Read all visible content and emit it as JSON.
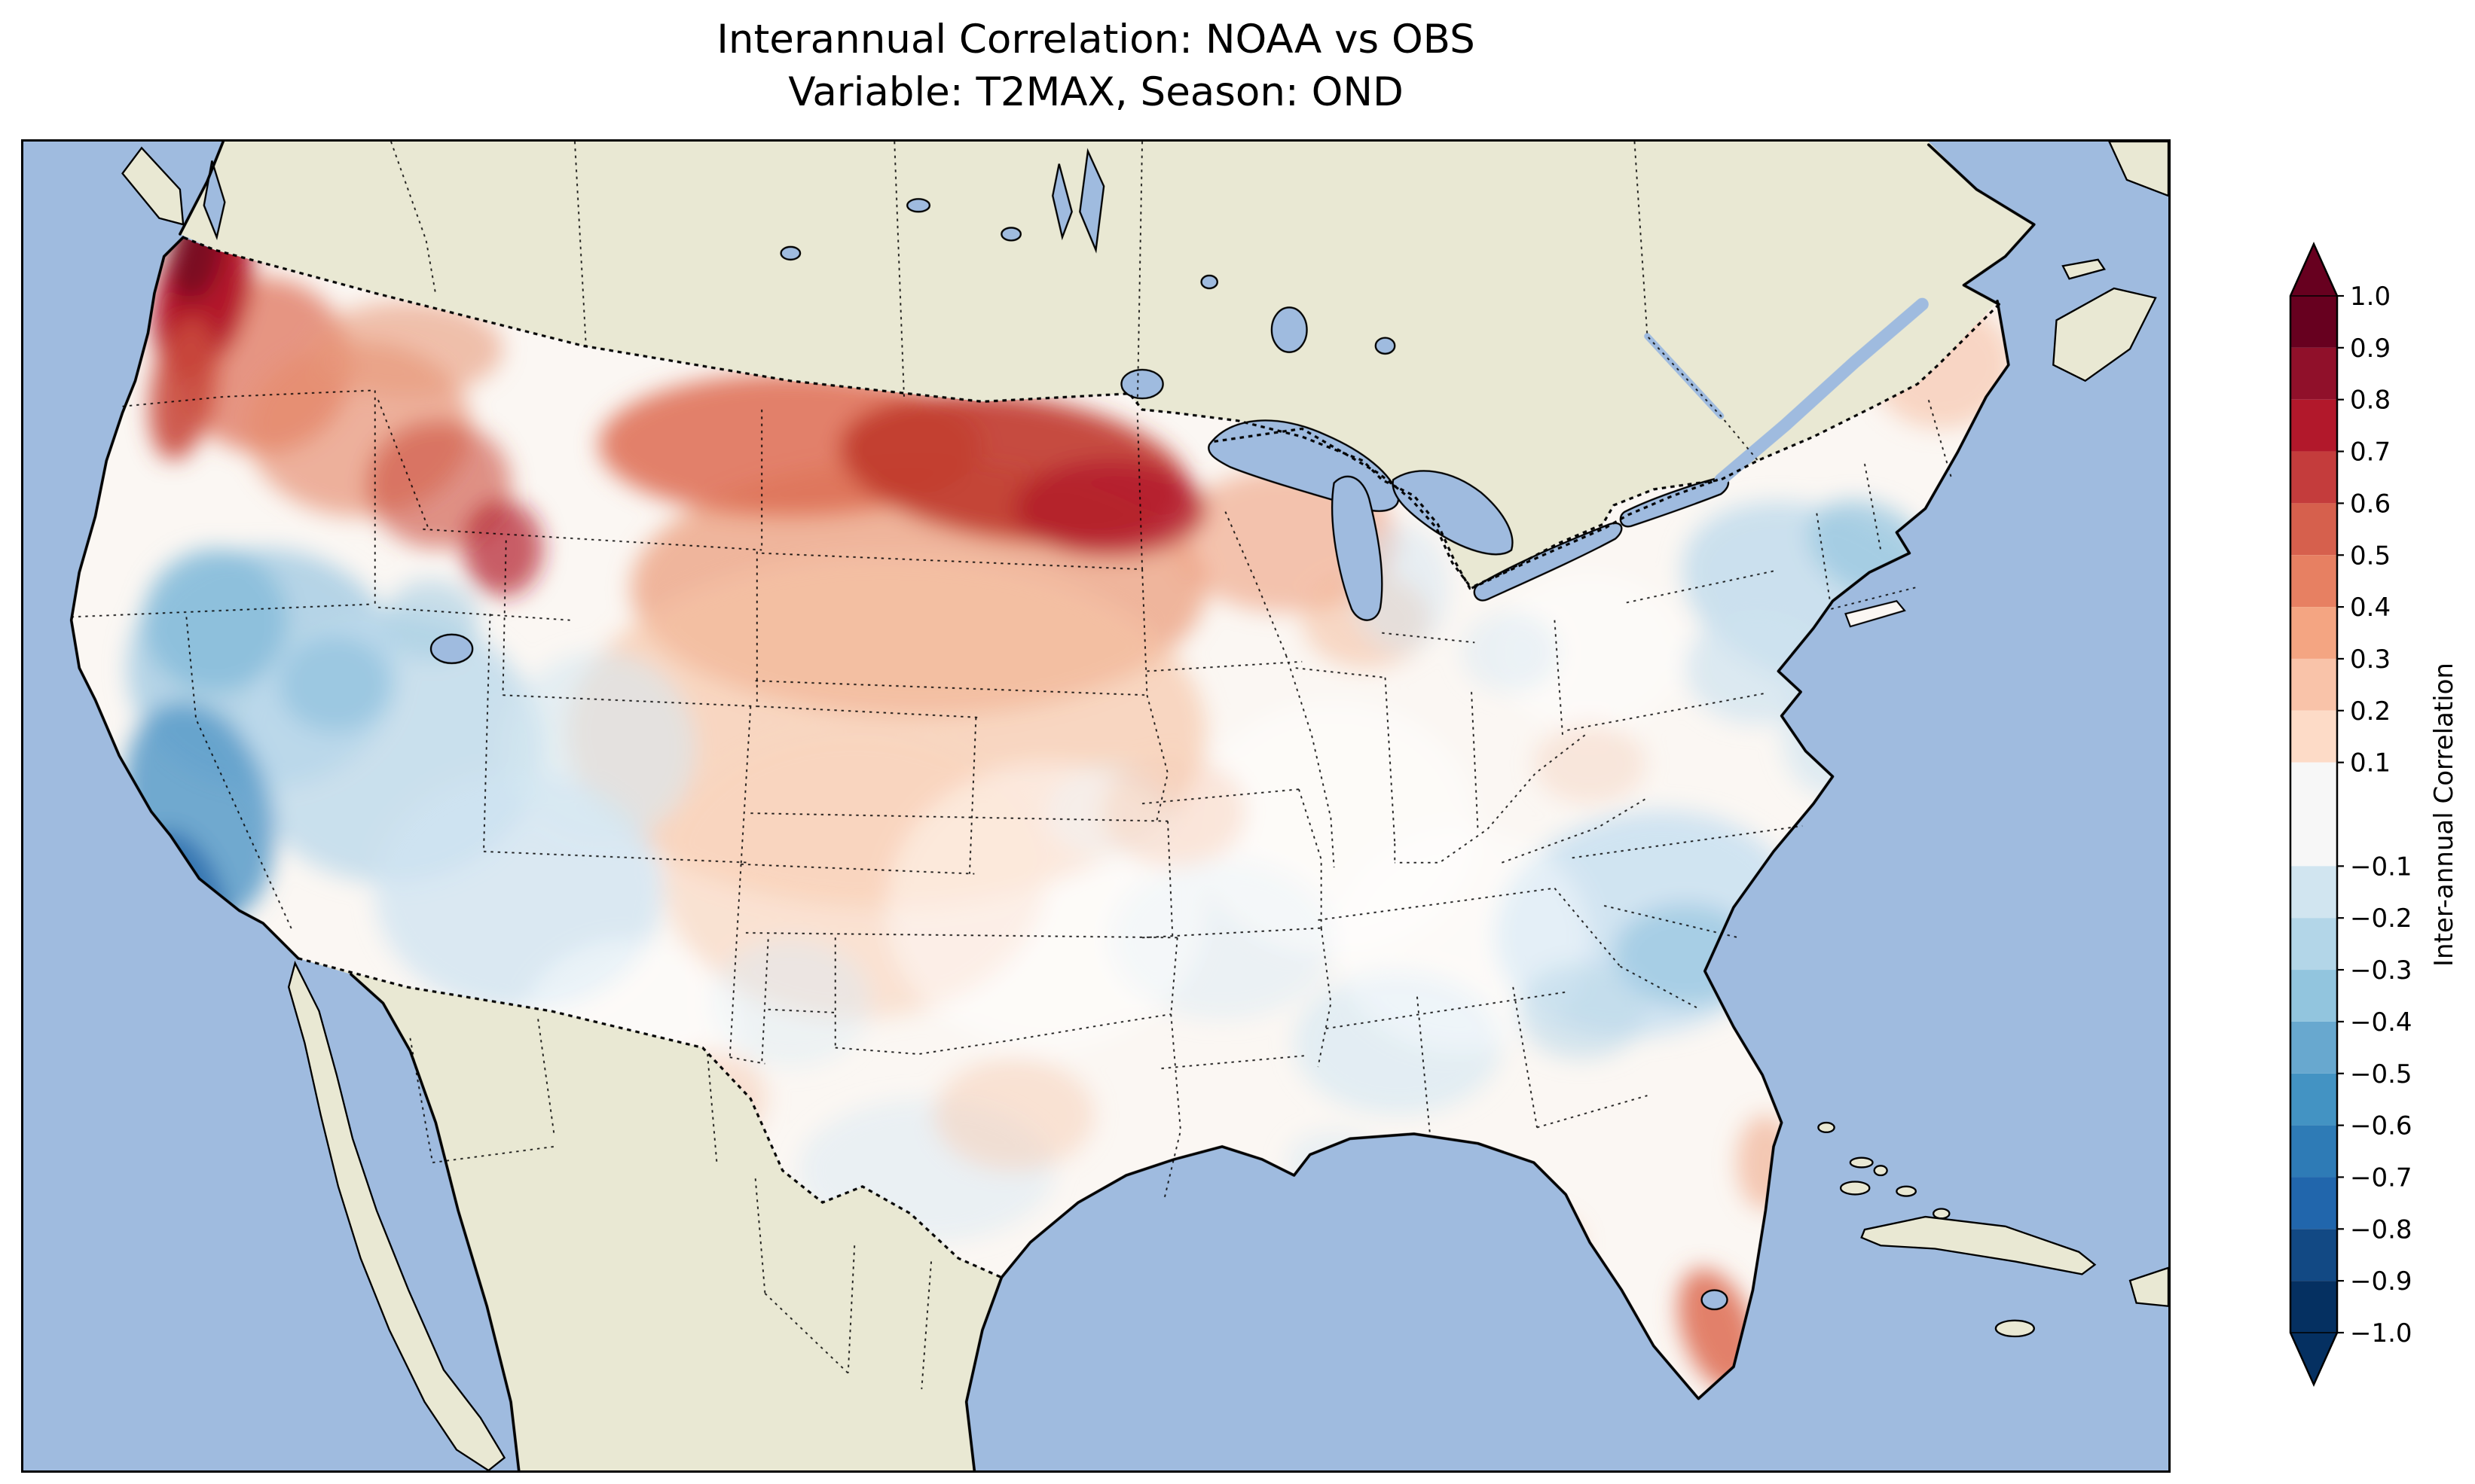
{
  "figure": {
    "title_line1": "Interannual Correlation: NOAA vs OBS",
    "title_line2": "Variable: T2MAX, Season: OND"
  },
  "colors": {
    "ocean": "#9fbbdf",
    "land": "#e9e8d3",
    "us_base": "#fbf7f3",
    "coastline": "#000000",
    "strong_positive": "#67001f",
    "strong_negative": "#053061"
  },
  "colorbar": {
    "label": "Inter-annual Correlation",
    "extend_over_color": "#67001f",
    "extend_under_color": "#053061",
    "bands": [
      {
        "from": 0.9,
        "to": 1.0,
        "color": "#67001f"
      },
      {
        "from": 0.8,
        "to": 0.9,
        "color": "#90102a"
      },
      {
        "from": 0.7,
        "to": 0.8,
        "color": "#b2182b"
      },
      {
        "from": 0.6,
        "to": 0.7,
        "color": "#c43c3c"
      },
      {
        "from": 0.5,
        "to": 0.6,
        "color": "#d6604d"
      },
      {
        "from": 0.4,
        "to": 0.5,
        "color": "#e78062"
      },
      {
        "from": 0.3,
        "to": 0.4,
        "color": "#f4a582"
      },
      {
        "from": 0.2,
        "to": 0.3,
        "color": "#f9c3a9"
      },
      {
        "from": 0.1,
        "to": 0.2,
        "color": "#fddbc7"
      },
      {
        "from": -0.1,
        "to": 0.1,
        "color": "#f7f7f7"
      },
      {
        "from": -0.2,
        "to": -0.1,
        "color": "#d1e5f0"
      },
      {
        "from": -0.3,
        "to": -0.2,
        "color": "#b3d6e8"
      },
      {
        "from": -0.4,
        "to": -0.3,
        "color": "#92c5de"
      },
      {
        "from": -0.5,
        "to": -0.4,
        "color": "#68a8cf"
      },
      {
        "from": -0.6,
        "to": -0.5,
        "color": "#4393c3"
      },
      {
        "from": -0.7,
        "to": -0.6,
        "color": "#2e7bb6"
      },
      {
        "from": -0.8,
        "to": -0.7,
        "color": "#2166ac"
      },
      {
        "from": -0.9,
        "to": -0.8,
        "color": "#124984"
      },
      {
        "from": -1.0,
        "to": -0.9,
        "color": "#053061"
      }
    ],
    "ticks": [
      {
        "value": 1.0,
        "label": "1.0"
      },
      {
        "value": 0.9,
        "label": "0.9"
      },
      {
        "value": 0.8,
        "label": "0.8"
      },
      {
        "value": 0.7,
        "label": "0.7"
      },
      {
        "value": 0.6,
        "label": "0.6"
      },
      {
        "value": 0.5,
        "label": "0.5"
      },
      {
        "value": 0.4,
        "label": "0.4"
      },
      {
        "value": 0.3,
        "label": "0.3"
      },
      {
        "value": 0.2,
        "label": "0.2"
      },
      {
        "value": 0.1,
        "label": "0.1"
      },
      {
        "value": -0.1,
        "label": "−0.1"
      },
      {
        "value": -0.2,
        "label": "−0.2"
      },
      {
        "value": -0.3,
        "label": "−0.3"
      },
      {
        "value": -0.4,
        "label": "−0.4"
      },
      {
        "value": -0.5,
        "label": "−0.5"
      },
      {
        "value": -0.6,
        "label": "−0.6"
      },
      {
        "value": -0.7,
        "label": "−0.7"
      },
      {
        "value": -0.8,
        "label": "−0.8"
      },
      {
        "value": -0.9,
        "label": "−0.9"
      },
      {
        "value": -1.0,
        "label": "−1.0"
      }
    ]
  },
  "chart_data": {
    "type": "heatmap",
    "subtype": "filled-contour-map",
    "title": "Interannual Correlation: NOAA vs OBS",
    "subtitle": "Variable: T2MAX, Season: OND",
    "comparison": "NOAA vs OBS",
    "variable": "T2MAX",
    "season": "OND",
    "colorbar_label": "Inter-annual Correlation",
    "colormap": "RdBu_r",
    "value_range": [
      -1.0,
      1.0
    ],
    "levels": [
      -1.0,
      -0.9,
      -0.8,
      -0.7,
      -0.6,
      -0.5,
      -0.4,
      -0.3,
      -0.2,
      -0.1,
      0.1,
      0.2,
      0.3,
      0.4,
      0.5,
      0.6,
      0.7,
      0.8,
      0.9,
      1.0
    ],
    "extent": "Continental United States (surrounding Canada/Mexico shown as land, no data)",
    "regions": [
      {
        "region": "Western Washington / Puget Sound coast",
        "correlation": 0.8
      },
      {
        "region": "NW Oregon coast",
        "correlation": 0.5
      },
      {
        "region": "Idaho / western Montana",
        "correlation": 0.4
      },
      {
        "region": "Northern Plains: North Dakota / NW Minnesota (along Canadian border)",
        "correlation": 0.6
      },
      {
        "region": "South Dakota / Nebraska / Iowa",
        "correlation": 0.3
      },
      {
        "region": "Central Plains (Kansas / Missouri)",
        "correlation": 0.2
      },
      {
        "region": "Sierra Nevada / central California",
        "correlation": -0.5
      },
      {
        "region": "Southern California (strongest negative)",
        "correlation": -0.8
      },
      {
        "region": "Great Basin (Nevada / Utah)",
        "correlation": -0.4
      },
      {
        "region": "Arizona / New Mexico",
        "correlation": -0.2
      },
      {
        "region": "Texas / Oklahoma",
        "correlation": 0.0
      },
      {
        "region": "Gulf Coast (Mississippi / Alabama)",
        "correlation": -0.2
      },
      {
        "region": "Southeast (Georgia / Carolinas)",
        "correlation": -0.3
      },
      {
        "region": "Ohio Valley / Tennessee",
        "correlation": 0.0
      },
      {
        "region": "Northeast (New York / New England)",
        "correlation": -0.2
      },
      {
        "region": "Maine interior",
        "correlation": 0.2
      },
      {
        "region": "Southern Florida tip",
        "correlation": 0.5
      }
    ]
  }
}
